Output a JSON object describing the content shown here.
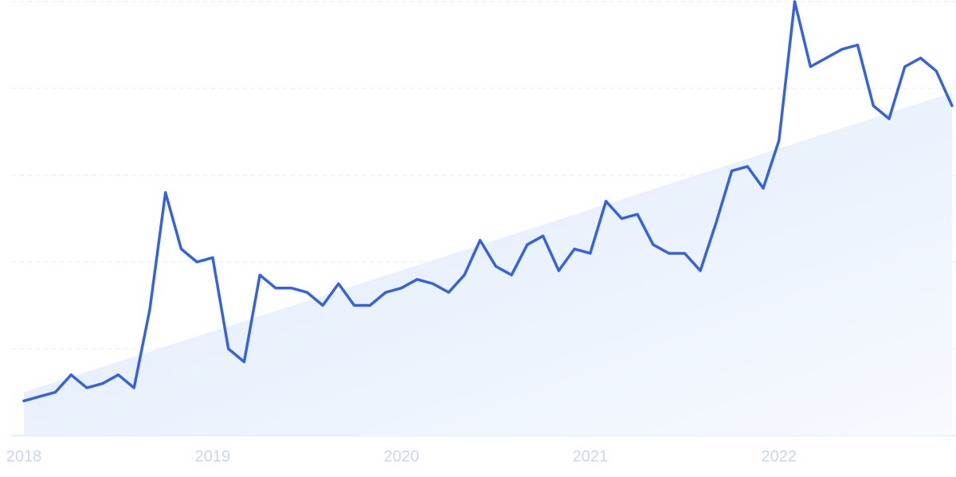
{
  "chart_data": {
    "type": "line",
    "categories": [
      "2018",
      null,
      null,
      null,
      null,
      null,
      null,
      null,
      null,
      null,
      null,
      null,
      "2019",
      null,
      null,
      null,
      null,
      null,
      null,
      null,
      null,
      null,
      null,
      null,
      "2020",
      null,
      null,
      null,
      null,
      null,
      null,
      null,
      null,
      null,
      null,
      null,
      "2021",
      null,
      null,
      null,
      null,
      null,
      null,
      null,
      null,
      null,
      null,
      null,
      "2022",
      null,
      null,
      null,
      null,
      null,
      null,
      null,
      null,
      null,
      null,
      null
    ],
    "series": [
      {
        "color": "#3563e0",
        "values": [
          8,
          9,
          10,
          14,
          11,
          12,
          14,
          11,
          29,
          56,
          43,
          40,
          41,
          20,
          17,
          37,
          34,
          34,
          33,
          30,
          35,
          30,
          30,
          33,
          34,
          36,
          35,
          33,
          37,
          45,
          39,
          37,
          44,
          46,
          38,
          43,
          42,
          54,
          50,
          51,
          44,
          42,
          42,
          38,
          49,
          61,
          62,
          57,
          68,
          100,
          85,
          87,
          89,
          90,
          76,
          73,
          85,
          87,
          84,
          76
        ]
      }
    ],
    "trend": {
      "color": "#e3eefb",
      "values": [
        10,
        79
      ]
    },
    "ylim": [
      0,
      100
    ],
    "yticks": [
      0,
      20,
      40,
      60,
      80,
      100
    ],
    "grid": true
  }
}
